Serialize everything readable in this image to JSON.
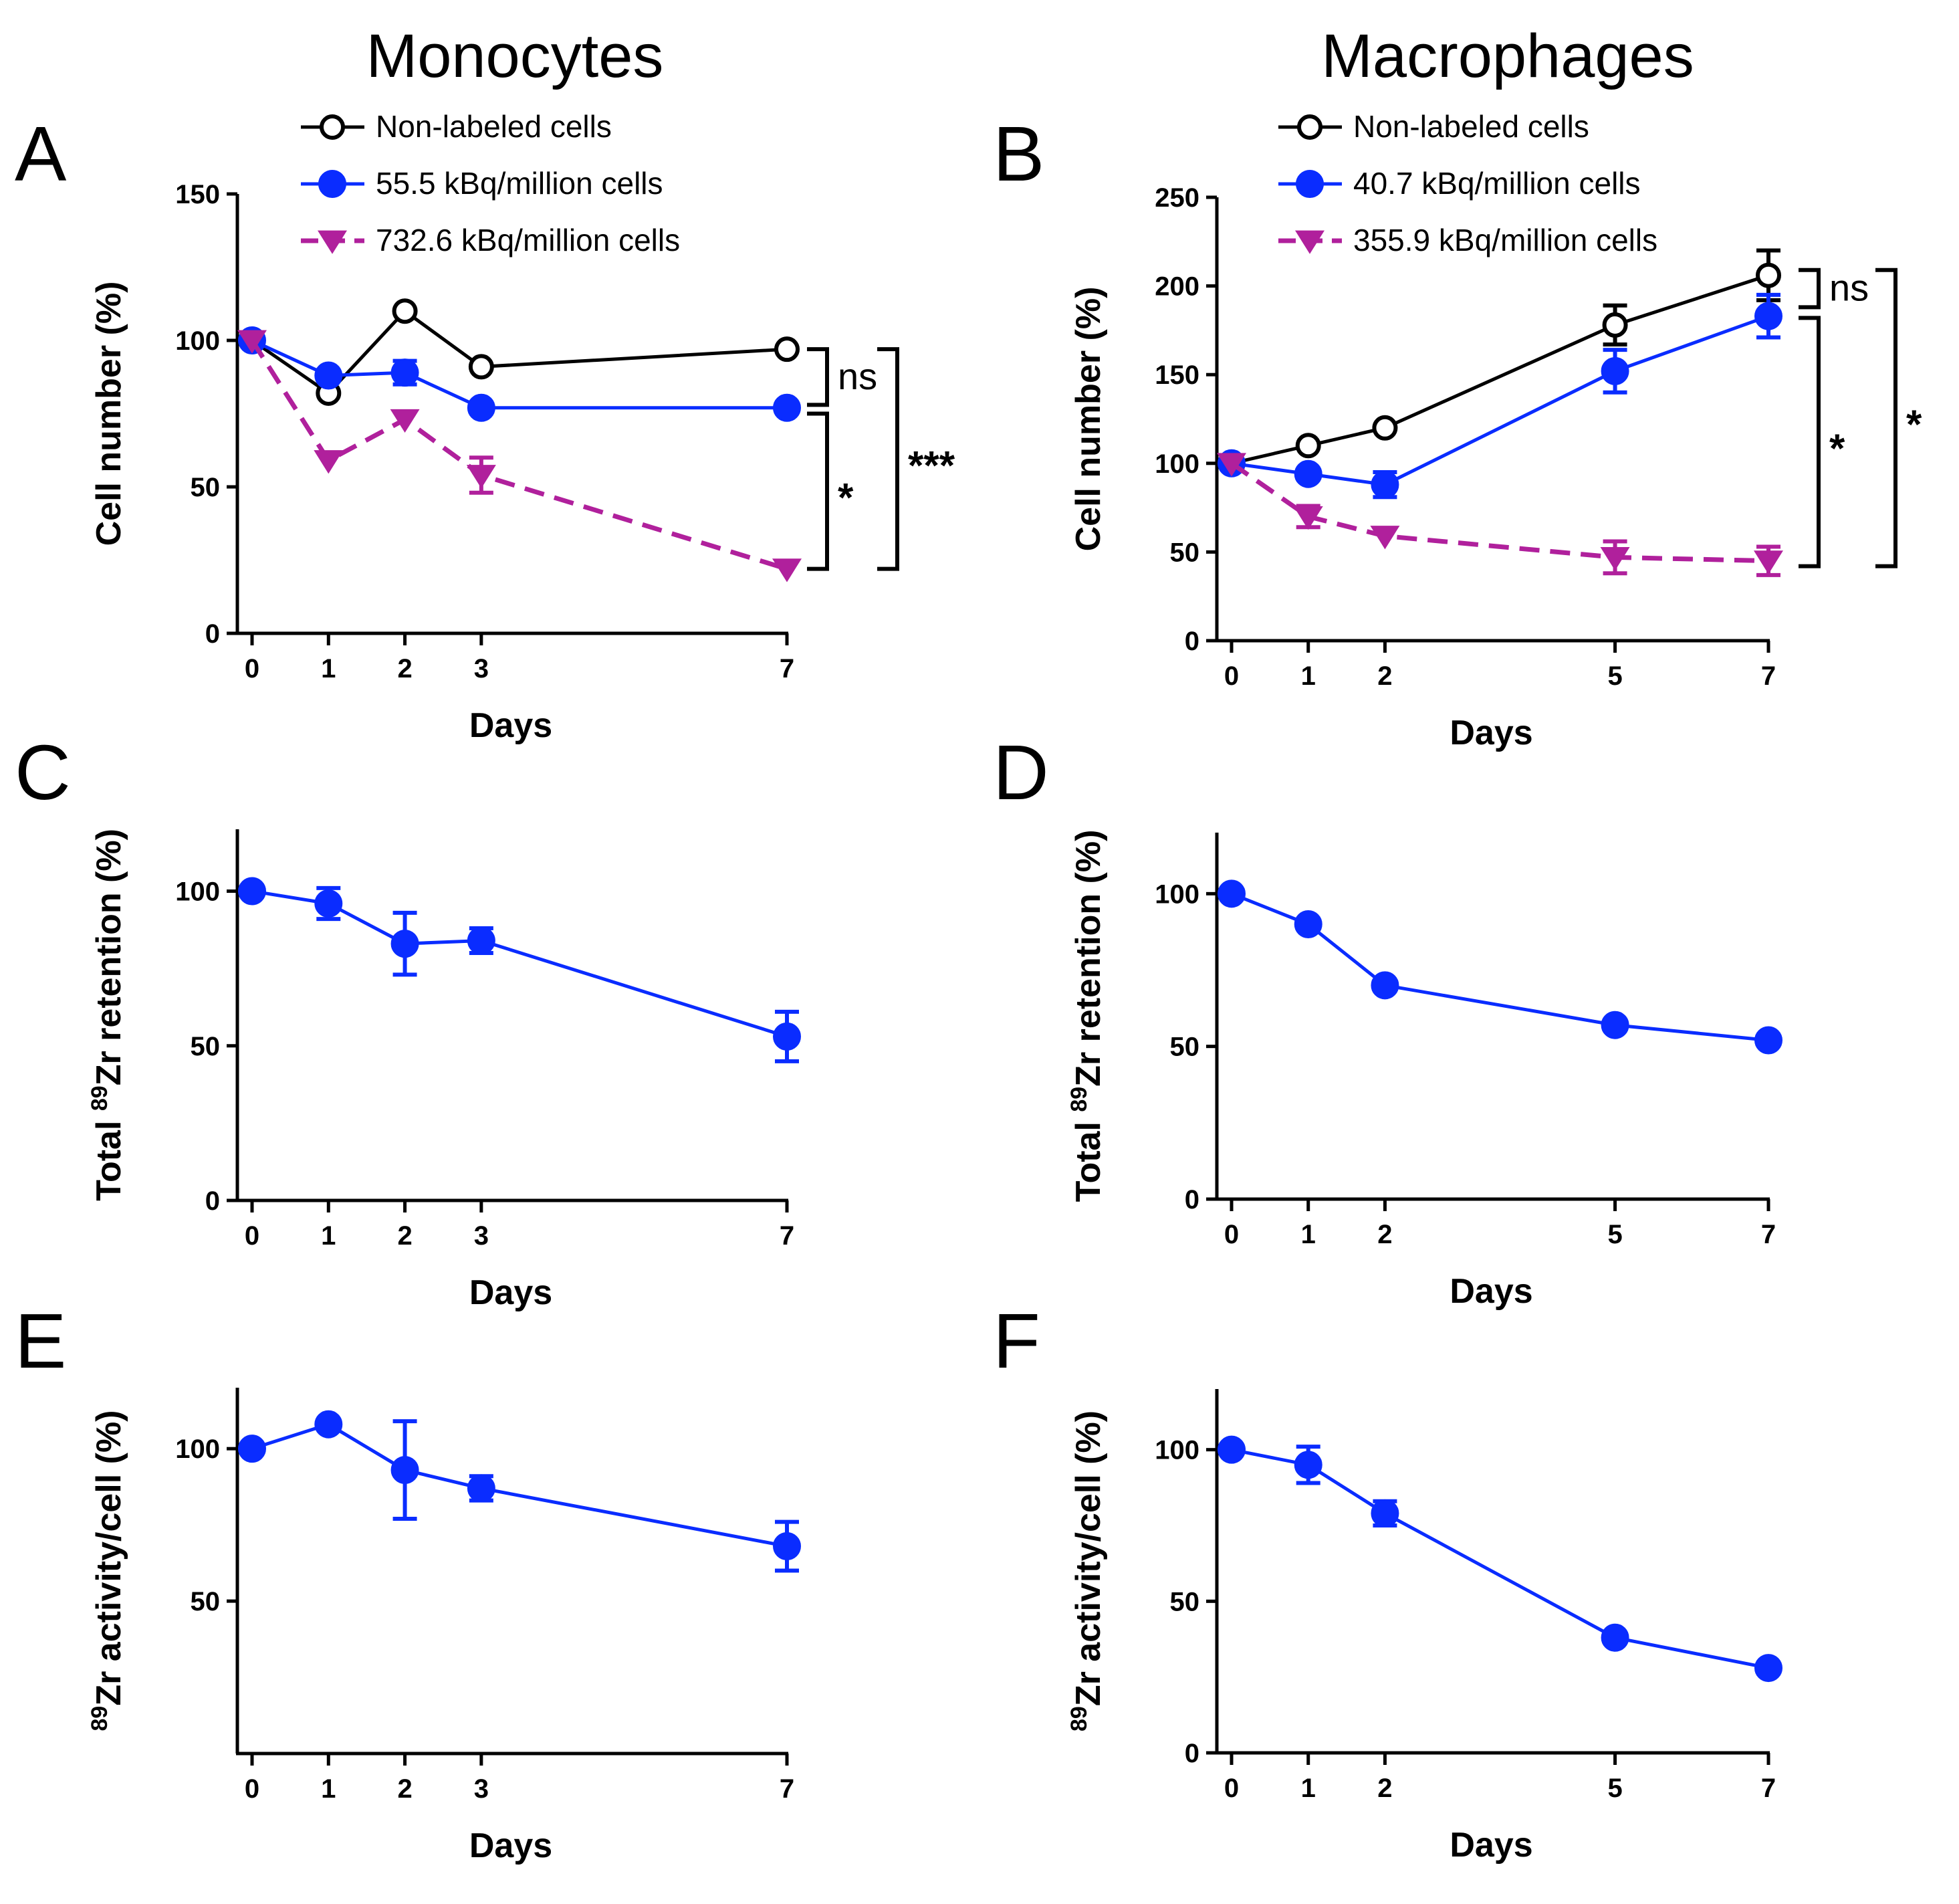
{
  "column_titles": [
    "Monocytes",
    "Macrophages"
  ],
  "chart_data": [
    {
      "panel": "A",
      "type": "line",
      "xlabel": "Days",
      "ylabel": "Cell number (%)",
      "ylim": [
        0,
        150
      ],
      "yticks": [
        0,
        50,
        100,
        150
      ],
      "xlim": [
        0,
        7
      ],
      "xticks": [
        0,
        1,
        2,
        3,
        7
      ],
      "legend": "top",
      "series": [
        {
          "name": "Non-labeled cells",
          "color": "#000000",
          "marker": "open-circle",
          "dash": "solid",
          "x": [
            0,
            1,
            2,
            3,
            7
          ],
          "y": [
            100,
            82,
            110,
            91,
            97
          ],
          "err": [
            0,
            0,
            0,
            0,
            0
          ]
        },
        {
          "name": "55.5 kBq/million cells",
          "color": "#0a2cff",
          "marker": "filled-circle",
          "dash": "solid",
          "x": [
            0,
            1,
            2,
            3,
            7
          ],
          "y": [
            100,
            88,
            89,
            77,
            77
          ],
          "err": [
            0,
            0,
            4,
            0,
            0
          ]
        },
        {
          "name": "732.6 kBq/million cells",
          "color": "#b0209c",
          "marker": "down-triangle",
          "dash": "dashed",
          "x": [
            0,
            1,
            2,
            3,
            7
          ],
          "y": [
            100,
            59,
            73,
            54,
            22
          ],
          "err": [
            0,
            0,
            0,
            6,
            0
          ]
        }
      ],
      "annotations": [
        {
          "text": "ns",
          "y_top": 97,
          "y_bottom": 78,
          "offset": 60,
          "style": "normal"
        },
        {
          "text": "*",
          "y_top": 75,
          "y_bottom": 22,
          "offset": 60,
          "style": "bold"
        },
        {
          "text": "***",
          "y_top": 97,
          "y_bottom": 22,
          "offset": 165,
          "style": "bold"
        }
      ]
    },
    {
      "panel": "B",
      "type": "line",
      "xlabel": "Days",
      "ylabel": "Cell number (%)",
      "ylim": [
        0,
        250
      ],
      "yticks": [
        0,
        50,
        100,
        150,
        200,
        250
      ],
      "xlim": [
        0,
        7
      ],
      "xticks": [
        0,
        1,
        2,
        5,
        7
      ],
      "legend": "top",
      "series": [
        {
          "name": "Non-labeled cells",
          "color": "#000000",
          "marker": "open-circle",
          "dash": "solid",
          "x": [
            0,
            1,
            2,
            5,
            7
          ],
          "y": [
            100,
            110,
            120,
            178,
            206
          ],
          "err": [
            0,
            0,
            0,
            11,
            14
          ]
        },
        {
          "name": "40.7 kBq/million cells",
          "color": "#0a2cff",
          "marker": "filled-circle",
          "dash": "solid",
          "x": [
            0,
            1,
            2,
            5,
            7
          ],
          "y": [
            100,
            94,
            88,
            152,
            183
          ],
          "err": [
            0,
            0,
            7,
            12,
            12
          ]
        },
        {
          "name": "355.9 kBq/million cells",
          "color": "#b0209c",
          "marker": "down-triangle",
          "dash": "dashed",
          "x": [
            0,
            1,
            2,
            5,
            7
          ],
          "y": [
            100,
            70,
            59,
            47,
            45
          ],
          "err": [
            0,
            6,
            0,
            9,
            8
          ]
        }
      ],
      "annotations": [
        {
          "text": "ns",
          "y_top": 209,
          "y_bottom": 188,
          "offset": 75,
          "style": "normal"
        },
        {
          "text": "*",
          "y_top": 182,
          "y_bottom": 42,
          "offset": 75,
          "style": "bold"
        },
        {
          "text": "*",
          "y_top": 209,
          "y_bottom": 42,
          "offset": 190,
          "style": "bold"
        }
      ]
    },
    {
      "panel": "C",
      "type": "line",
      "xlabel": "Days",
      "ylabel": "Total 89Zr retention (%)",
      "ylim": [
        0,
        120
      ],
      "yticks": [
        0,
        50,
        100
      ],
      "xlim": [
        0,
        7
      ],
      "xticks": [
        0,
        1,
        2,
        3,
        7
      ],
      "series": [
        {
          "name": "89Zr retention",
          "color": "#0a2cff",
          "marker": "filled-circle",
          "dash": "solid",
          "x": [
            0,
            1,
            2,
            3,
            7
          ],
          "y": [
            100,
            96,
            83,
            84,
            53
          ],
          "err": [
            0,
            5,
            10,
            4,
            8
          ]
        }
      ]
    },
    {
      "panel": "D",
      "type": "line",
      "xlabel": "Days",
      "ylabel": "Total 89Zr retention (%)",
      "ylim": [
        0,
        120
      ],
      "yticks": [
        0,
        50,
        100
      ],
      "xlim": [
        0,
        7
      ],
      "xticks": [
        0,
        1,
        2,
        5,
        7
      ],
      "series": [
        {
          "name": "89Zr retention",
          "color": "#0a2cff",
          "marker": "filled-circle",
          "dash": "solid",
          "x": [
            0,
            1,
            2,
            5,
            7
          ],
          "y": [
            100,
            90,
            70,
            57,
            52
          ],
          "err": [
            0,
            0,
            0,
            0,
            0
          ]
        }
      ]
    },
    {
      "panel": "E",
      "type": "line",
      "xlabel": "Days",
      "ylabel": "89Zr activity/cell (%)",
      "ylim": [
        0,
        120
      ],
      "yticks": [
        50,
        100
      ],
      "xlim": [
        0,
        7
      ],
      "xticks": [
        0,
        1,
        2,
        3,
        7
      ],
      "series": [
        {
          "name": "89Zr activity/cell",
          "color": "#0a2cff",
          "marker": "filled-circle",
          "dash": "solid",
          "x": [
            0,
            1,
            2,
            3,
            7
          ],
          "y": [
            100,
            108,
            93,
            87,
            68
          ],
          "err": [
            0,
            0,
            16,
            4,
            8
          ]
        }
      ]
    },
    {
      "panel": "F",
      "type": "line",
      "xlabel": "Days",
      "ylabel": "89Zr activity/cell (%)",
      "ylim": [
        0,
        120
      ],
      "yticks": [
        0,
        50,
        100
      ],
      "xlim": [
        0,
        7
      ],
      "xticks": [
        0,
        1,
        2,
        5,
        7
      ],
      "series": [
        {
          "name": "89Zr activity/cell",
          "color": "#0a2cff",
          "marker": "filled-circle",
          "dash": "solid",
          "x": [
            0,
            1,
            2,
            5,
            7
          ],
          "y": [
            100,
            95,
            79,
            38,
            28
          ],
          "err": [
            0,
            6,
            4,
            0,
            0
          ]
        }
      ]
    }
  ]
}
